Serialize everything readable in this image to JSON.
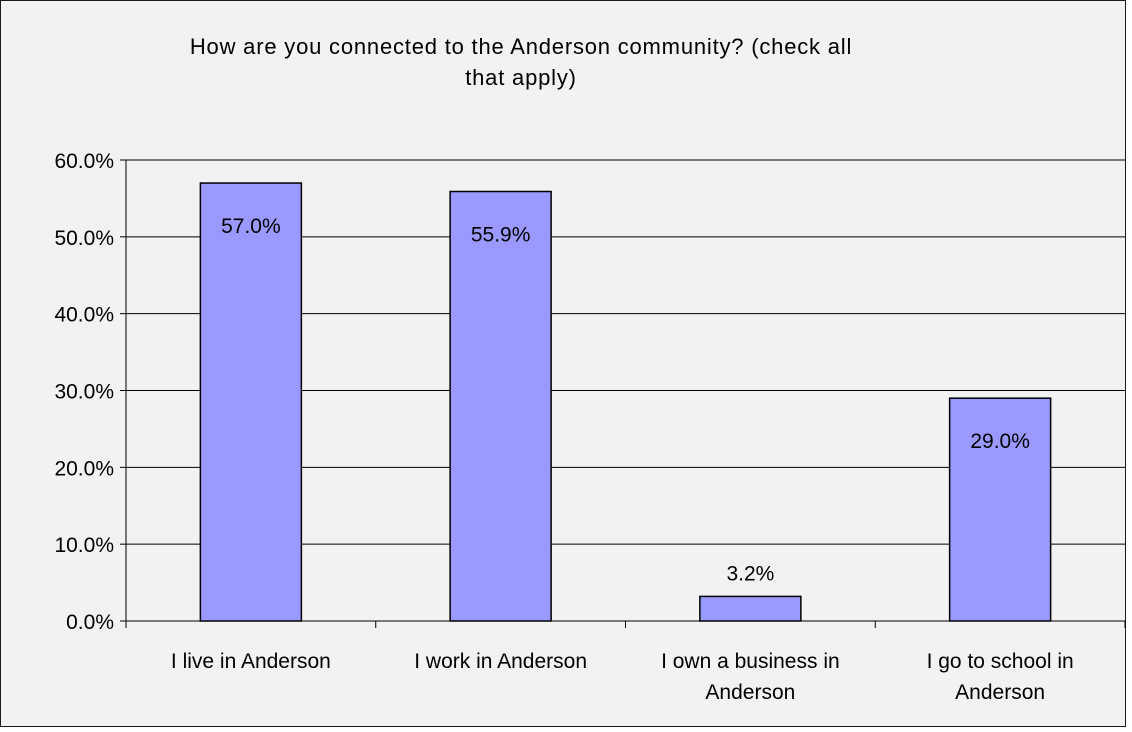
{
  "chart_data": {
    "type": "bar",
    "title": "How are you connected to the Anderson community? (check all\nthat apply)",
    "categories": [
      [
        "I live in Anderson"
      ],
      [
        "I work in Anderson"
      ],
      [
        "I own a business in",
        "Anderson"
      ],
      [
        "I go to school in",
        "Anderson"
      ]
    ],
    "values": [
      57.0,
      55.9,
      3.2,
      29.0
    ],
    "data_labels": [
      "57.0%",
      "55.9%",
      "3.2%",
      "29.0%"
    ],
    "y_ticks": [
      "0.0%",
      "10.0%",
      "20.0%",
      "30.0%",
      "40.0%",
      "50.0%",
      "60.0%"
    ],
    "ylim": [
      0,
      60
    ],
    "xlabel": "",
    "ylabel": "",
    "grid": true,
    "legend": "none",
    "colors": {
      "bar_fill": "#9999ff",
      "bar_stroke": "#000000",
      "plot_background": "#f2f2f2",
      "gridline": "#000000"
    }
  }
}
